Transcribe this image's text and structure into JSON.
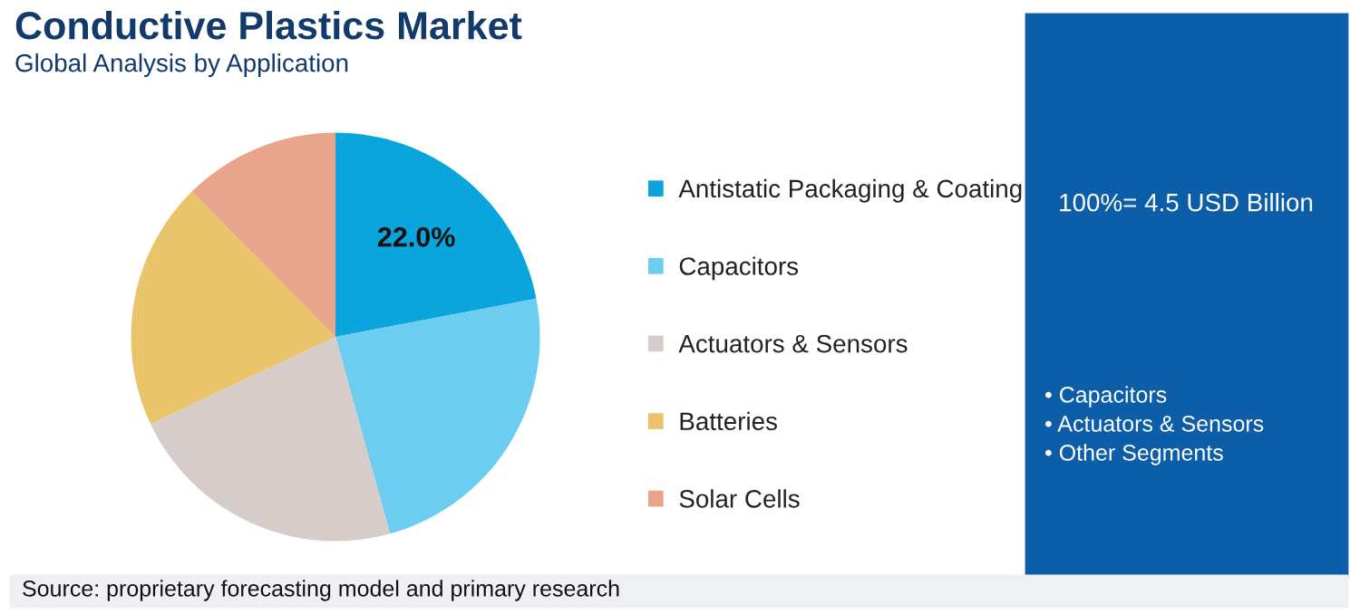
{
  "chart_data": {
    "type": "pie",
    "title": "Conductive Plastics Market",
    "subtitle": "Global Analysis by Application",
    "categories": [
      "Antistatic Packaging & Coating",
      "Capacitors",
      "Actuators & Sensors",
      "Batteries",
      "Solar Cells"
    ],
    "values": [
      22.0,
      23.7,
      22.3,
      19.6,
      12.4
    ],
    "colors": [
      "#0aa5dc",
      "#6ccdf0",
      "#d6ccc9",
      "#e9c46a",
      "#e9a58c"
    ],
    "value_labels": [
      "22.0%",
      null,
      null,
      null,
      null
    ],
    "legend": "right",
    "annotations": [
      "Source: proprietary forecasting model and primary research",
      "100%= 4.5 USD Billion",
      "• Capacitors",
      "• Actuators & Sensors",
      "• Other Segments"
    ]
  }
}
